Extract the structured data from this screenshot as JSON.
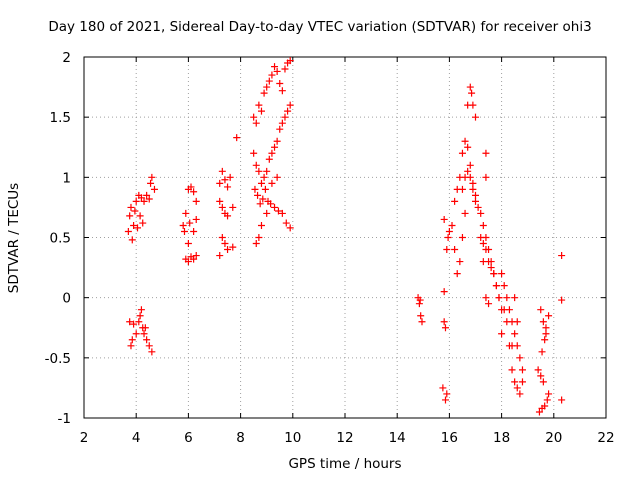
{
  "chart_data": {
    "type": "scatter",
    "title": "Day 180 of 2021, Sidereal Day-to-day VTEC variation (SDTVAR) for receiver ohi3",
    "xlabel": "GPS time / hours",
    "ylabel": "SDTVAR / TECUs",
    "xlim": [
      2,
      22
    ],
    "ylim": [
      -1,
      2
    ],
    "xticks": [
      "2",
      "4",
      "6",
      "8",
      "10",
      "12",
      "14",
      "16",
      "18",
      "20",
      "22"
    ],
    "yticks": [
      "-1",
      "-0.5",
      "0",
      "0.5",
      "1",
      "1.5",
      "2"
    ],
    "grid": true,
    "marker": "+",
    "color": "#ff0000",
    "series": [
      {
        "name": "SDTVAR",
        "points": [
          [
            3.7,
            0.55
          ],
          [
            3.75,
            0.68
          ],
          [
            3.8,
            0.75
          ],
          [
            3.85,
            0.48
          ],
          [
            3.9,
            0.6
          ],
          [
            3.95,
            0.72
          ],
          [
            4.0,
            0.8
          ],
          [
            4.1,
            0.85
          ],
          [
            4.2,
            0.83
          ],
          [
            4.3,
            0.8
          ],
          [
            4.4,
            0.85
          ],
          [
            4.5,
            0.82
          ],
          [
            4.55,
            0.95
          ],
          [
            4.6,
            1.0
          ],
          [
            4.7,
            0.9
          ],
          [
            4.15,
            0.68
          ],
          [
            4.25,
            0.62
          ],
          [
            4.05,
            0.58
          ],
          [
            3.75,
            -0.2
          ],
          [
            3.8,
            -0.4
          ],
          [
            3.9,
            -0.22
          ],
          [
            4.0,
            -0.3
          ],
          [
            4.1,
            -0.2
          ],
          [
            4.2,
            -0.1
          ],
          [
            4.3,
            -0.3
          ],
          [
            4.4,
            -0.35
          ],
          [
            4.5,
            -0.4
          ],
          [
            4.6,
            -0.45
          ],
          [
            4.15,
            -0.15
          ],
          [
            4.25,
            -0.25
          ],
          [
            3.85,
            -0.35
          ],
          [
            4.35,
            -0.25
          ],
          [
            5.8,
            0.6
          ],
          [
            5.9,
            0.7
          ],
          [
            6.0,
            0.9
          ],
          [
            6.1,
            0.92
          ],
          [
            6.2,
            0.88
          ],
          [
            6.3,
            0.8
          ],
          [
            5.85,
            0.55
          ],
          [
            6.05,
            0.62
          ],
          [
            6.2,
            0.55
          ],
          [
            6.3,
            0.65
          ],
          [
            6.0,
            0.45
          ],
          [
            5.9,
            0.32
          ],
          [
            6.0,
            0.3
          ],
          [
            6.1,
            0.34
          ],
          [
            6.2,
            0.32
          ],
          [
            6.3,
            0.35
          ],
          [
            7.2,
            0.95
          ],
          [
            7.3,
            1.05
          ],
          [
            7.4,
            0.98
          ],
          [
            7.5,
            0.92
          ],
          [
            7.6,
            1.0
          ],
          [
            7.7,
            0.75
          ],
          [
            7.3,
            0.75
          ],
          [
            7.4,
            0.7
          ],
          [
            7.5,
            0.68
          ],
          [
            7.3,
            0.5
          ],
          [
            7.4,
            0.45
          ],
          [
            7.5,
            0.4
          ],
          [
            7.7,
            0.42
          ],
          [
            7.2,
            0.35
          ],
          [
            7.85,
            1.33
          ],
          [
            7.2,
            0.8
          ],
          [
            8.5,
            1.5
          ],
          [
            8.6,
            1.45
          ],
          [
            8.7,
            1.6
          ],
          [
            8.8,
            1.55
          ],
          [
            8.9,
            1.7
          ],
          [
            9.0,
            1.75
          ],
          [
            9.1,
            1.8
          ],
          [
            9.2,
            1.85
          ],
          [
            9.3,
            1.92
          ],
          [
            9.4,
            1.88
          ],
          [
            9.5,
            1.78
          ],
          [
            9.6,
            1.72
          ],
          [
            9.7,
            1.9
          ],
          [
            9.8,
            1.95
          ],
          [
            9.9,
            1.97
          ],
          [
            8.5,
            1.2
          ],
          [
            8.6,
            1.1
          ],
          [
            8.7,
            1.05
          ],
          [
            8.8,
            0.95
          ],
          [
            8.9,
            1.0
          ],
          [
            9.0,
            1.05
          ],
          [
            9.1,
            1.15
          ],
          [
            9.2,
            1.2
          ],
          [
            9.3,
            1.25
          ],
          [
            9.4,
            1.3
          ],
          [
            9.5,
            1.4
          ],
          [
            9.6,
            1.45
          ],
          [
            9.7,
            1.5
          ],
          [
            9.8,
            1.55
          ],
          [
            9.9,
            1.6
          ],
          [
            8.55,
            0.9
          ],
          [
            8.65,
            0.85
          ],
          [
            8.75,
            0.78
          ],
          [
            8.85,
            0.82
          ],
          [
            8.95,
            0.9
          ],
          [
            9.05,
            0.8
          ],
          [
            9.15,
            0.78
          ],
          [
            9.3,
            0.75
          ],
          [
            9.45,
            0.72
          ],
          [
            9.6,
            0.7
          ],
          [
            9.75,
            0.62
          ],
          [
            9.9,
            0.58
          ],
          [
            8.6,
            0.45
          ],
          [
            8.7,
            0.5
          ],
          [
            8.8,
            0.6
          ],
          [
            9.0,
            0.7
          ],
          [
            9.4,
            1.0
          ],
          [
            9.2,
            0.95
          ],
          [
            14.8,
            0.0
          ],
          [
            14.85,
            -0.05
          ],
          [
            14.9,
            -0.15
          ],
          [
            14.95,
            -0.2
          ],
          [
            14.88,
            -0.02
          ],
          [
            15.8,
            -0.2
          ],
          [
            15.85,
            -0.25
          ],
          [
            15.9,
            0.4
          ],
          [
            15.95,
            0.5
          ],
          [
            15.8,
            0.65
          ],
          [
            15.75,
            -0.75
          ],
          [
            15.85,
            -0.85
          ],
          [
            15.9,
            -0.8
          ],
          [
            15.8,
            0.05
          ],
          [
            16.0,
            0.55
          ],
          [
            16.1,
            0.6
          ],
          [
            16.2,
            0.8
          ],
          [
            16.3,
            0.9
          ],
          [
            16.4,
            1.0
          ],
          [
            16.5,
            1.2
          ],
          [
            16.6,
            1.3
          ],
          [
            16.7,
            1.25
          ],
          [
            16.8,
            1.1
          ],
          [
            16.9,
            0.95
          ],
          [
            17.0,
            0.85
          ],
          [
            17.1,
            0.75
          ],
          [
            17.2,
            0.7
          ],
          [
            17.3,
            0.6
          ],
          [
            17.4,
            0.5
          ],
          [
            17.5,
            0.4
          ],
          [
            17.6,
            0.3
          ],
          [
            17.7,
            0.2
          ],
          [
            17.8,
            0.1
          ],
          [
            17.9,
            0.0
          ],
          [
            16.7,
            1.6
          ],
          [
            16.8,
            1.75
          ],
          [
            16.85,
            1.7
          ],
          [
            16.9,
            1.6
          ],
          [
            17.0,
            1.5
          ],
          [
            16.5,
            0.9
          ],
          [
            16.6,
            1.0
          ],
          [
            16.7,
            1.05
          ],
          [
            16.8,
            1.0
          ],
          [
            16.9,
            0.9
          ],
          [
            17.0,
            0.8
          ],
          [
            17.2,
            0.5
          ],
          [
            17.3,
            0.45
          ],
          [
            17.4,
            0.4
          ],
          [
            17.5,
            0.3
          ],
          [
            17.6,
            0.25
          ],
          [
            17.7,
            0.2
          ],
          [
            17.8,
            0.1
          ],
          [
            17.9,
            0.0
          ],
          [
            18.0,
            -0.1
          ],
          [
            16.3,
            0.2
          ],
          [
            16.4,
            0.3
          ],
          [
            16.5,
            0.5
          ],
          [
            16.6,
            0.7
          ],
          [
            16.2,
            0.4
          ],
          [
            17.4,
            1.2
          ],
          [
            17.4,
            1.0
          ],
          [
            17.3,
            0.3
          ],
          [
            17.4,
            0.0
          ],
          [
            17.5,
            -0.05
          ],
          [
            18.0,
            0.2
          ],
          [
            18.1,
            0.1
          ],
          [
            18.2,
            0.0
          ],
          [
            18.3,
            -0.1
          ],
          [
            18.4,
            -0.2
          ],
          [
            18.5,
            -0.3
          ],
          [
            18.6,
            -0.4
          ],
          [
            18.7,
            -0.5
          ],
          [
            18.8,
            -0.6
          ],
          [
            18.2,
            -0.2
          ],
          [
            18.3,
            -0.4
          ],
          [
            18.4,
            -0.6
          ],
          [
            18.5,
            -0.7
          ],
          [
            18.6,
            -0.75
          ],
          [
            18.7,
            -0.8
          ],
          [
            18.8,
            -0.7
          ],
          [
            18.1,
            -0.1
          ],
          [
            18.0,
            -0.3
          ],
          [
            18.6,
            -0.2
          ],
          [
            18.5,
            0.0
          ],
          [
            18.4,
            -0.4
          ],
          [
            19.4,
            -0.6
          ],
          [
            19.5,
            -0.65
          ],
          [
            19.6,
            -0.7
          ],
          [
            19.45,
            -0.95
          ],
          [
            19.55,
            -0.92
          ],
          [
            19.65,
            -0.9
          ],
          [
            19.75,
            -0.85
          ],
          [
            19.5,
            -0.1
          ],
          [
            19.6,
            -0.2
          ],
          [
            19.7,
            -0.25
          ],
          [
            19.8,
            -0.15
          ],
          [
            19.55,
            -0.45
          ],
          [
            19.65,
            -0.35
          ],
          [
            19.7,
            -0.3
          ],
          [
            19.8,
            -0.8
          ],
          [
            20.3,
            0.35
          ],
          [
            20.3,
            -0.02
          ],
          [
            20.3,
            -0.85
          ]
        ]
      }
    ]
  }
}
